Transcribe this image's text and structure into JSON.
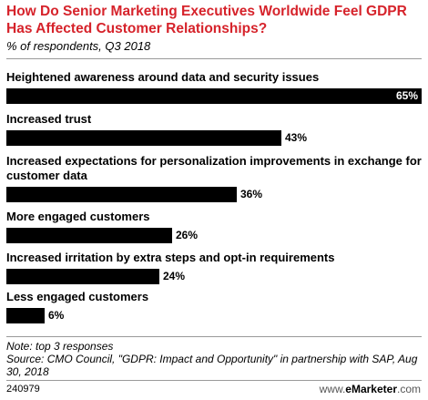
{
  "header": {
    "title": "How Do Senior Marketing Executives Worldwide Feel GDPR Has Affected Customer Relationships?",
    "subtitle": "% of respondents, Q3 2018"
  },
  "chart_data": {
    "type": "bar",
    "orientation": "horizontal",
    "title": "How Do Senior Marketing Executives Worldwide Feel GDPR Has Affected Customer Relationships?",
    "subtitle": "% of respondents, Q3 2018",
    "categories": [
      "Heightened awareness around data and security issues",
      "Increased trust",
      "Increased expectations for personalization improvements in exchange for customer data",
      "More engaged customers",
      "Increased irritation by extra steps and opt-in requirements",
      "Less engaged customers"
    ],
    "values": [
      65,
      43,
      36,
      26,
      24,
      6
    ],
    "value_labels": [
      "65%",
      "43%",
      "36%",
      "26%",
      "24%",
      "6%"
    ],
    "xlim": [
      0,
      65
    ],
    "bar_color": "#000000",
    "grid": false
  },
  "footer": {
    "note": "Note: top 3 responses",
    "source": "Source: CMO Council, \"GDPR: Impact and Opportunity\" in partnership with SAP, Aug 30, 2018",
    "chart_id": "240979",
    "brand_prefix": "www.",
    "brand_name": "eMarketer",
    "brand_suffix": ".com"
  },
  "colors": {
    "title": "#d6232b",
    "bar": "#000000",
    "divider": "#9a9a9a"
  }
}
